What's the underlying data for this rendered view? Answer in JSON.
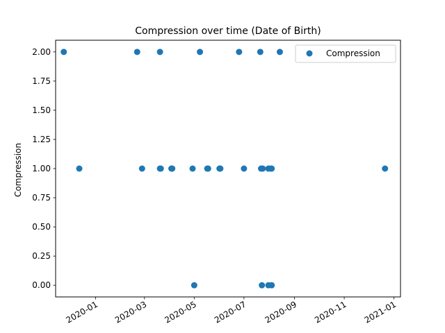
{
  "chart_data": {
    "type": "scatter",
    "title": "Compression  over time (Date of Birth)",
    "xlabel": "",
    "ylabel": "Compression",
    "x_is_date": true,
    "xlim": [
      "2019-11-13",
      "2021-01-09"
    ],
    "ylim": [
      -0.1,
      2.1
    ],
    "x_ticks": [
      {
        "date": "2020-01-01",
        "label": "2020-01"
      },
      {
        "date": "2020-03-01",
        "label": "2020-03"
      },
      {
        "date": "2020-05-01",
        "label": "2020-05"
      },
      {
        "date": "2020-07-01",
        "label": "2020-07"
      },
      {
        "date": "2020-09-01",
        "label": "2020-09"
      },
      {
        "date": "2020-11-01",
        "label": "2020-11"
      },
      {
        "date": "2021-01-01",
        "label": "2021-01"
      }
    ],
    "y_ticks": [
      {
        "value": 0.0,
        "label": "0.00"
      },
      {
        "value": 0.25,
        "label": "0.25"
      },
      {
        "value": 0.5,
        "label": "0.50"
      },
      {
        "value": 0.75,
        "label": "0.75"
      },
      {
        "value": 1.0,
        "label": "1.00"
      },
      {
        "value": 1.25,
        "label": "1.25"
      },
      {
        "value": 1.5,
        "label": "1.50"
      },
      {
        "value": 1.75,
        "label": "1.75"
      },
      {
        "value": 2.0,
        "label": "2.00"
      }
    ],
    "grid": false,
    "legend_position": "top-right",
    "series": [
      {
        "name": "Compression",
        "color": "#1f77b4",
        "points": [
          {
            "x": "2019-11-23",
            "y": 2
          },
          {
            "x": "2020-02-21",
            "y": 2
          },
          {
            "x": "2020-03-20",
            "y": 2
          },
          {
            "x": "2020-05-08",
            "y": 2
          },
          {
            "x": "2020-06-25",
            "y": 2
          },
          {
            "x": "2020-07-21",
            "y": 2
          },
          {
            "x": "2020-08-14",
            "y": 2
          },
          {
            "x": "2019-12-12",
            "y": 1
          },
          {
            "x": "2020-02-27",
            "y": 1
          },
          {
            "x": "2020-03-20",
            "y": 1
          },
          {
            "x": "2020-03-21",
            "y": 1
          },
          {
            "x": "2020-04-03",
            "y": 1
          },
          {
            "x": "2020-04-04",
            "y": 1
          },
          {
            "x": "2020-04-29",
            "y": 1
          },
          {
            "x": "2020-05-17",
            "y": 1
          },
          {
            "x": "2020-05-18",
            "y": 1
          },
          {
            "x": "2020-06-01",
            "y": 1
          },
          {
            "x": "2020-06-02",
            "y": 1
          },
          {
            "x": "2020-07-01",
            "y": 1
          },
          {
            "x": "2020-07-22",
            "y": 1
          },
          {
            "x": "2020-07-24",
            "y": 1
          },
          {
            "x": "2020-07-31",
            "y": 1
          },
          {
            "x": "2020-08-03",
            "y": 1
          },
          {
            "x": "2020-08-04",
            "y": 1
          },
          {
            "x": "2020-12-21",
            "y": 1
          },
          {
            "x": "2020-05-01",
            "y": 0
          },
          {
            "x": "2020-07-23",
            "y": 0
          },
          {
            "x": "2020-07-31",
            "y": 0
          },
          {
            "x": "2020-08-04",
            "y": 0
          }
        ]
      }
    ]
  }
}
